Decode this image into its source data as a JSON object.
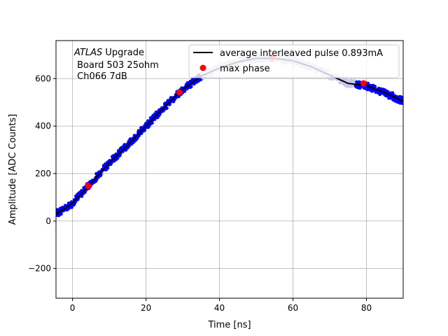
{
  "chart_data": {
    "type": "scatter",
    "title": "",
    "xlabel": "Time [ns]",
    "ylabel": "Amplitude [ADC Counts]",
    "xlim": [
      -4.5,
      90
    ],
    "ylim": [
      -325,
      760
    ],
    "grid": true,
    "xticks": [
      0,
      20,
      40,
      60,
      80
    ],
    "xtick_labels": [
      "0",
      "20",
      "40",
      "60",
      "80"
    ],
    "yticks": [
      -200,
      0,
      200,
      400,
      600
    ],
    "ytick_labels": [
      "−200",
      "0",
      "200",
      "400",
      "600"
    ],
    "annotation": {
      "line1_italic": "ATLAS",
      "line1_rest": " Upgrade",
      "line2": " Board 503 25ohm",
      "line3": " Ch066 7dB"
    },
    "legend": {
      "placement": "top-right",
      "entries": [
        {
          "label": "average interleaved pulse 0.893mA",
          "marker": "line",
          "color": "#000000"
        },
        {
          "label": "max phase",
          "marker": "dot",
          "color": "#ff0000"
        }
      ]
    },
    "colors": {
      "samples": "#0000ff",
      "samples_faded": "#c8c8f0",
      "average_line": "#000000",
      "max_phase": "#ff0000"
    },
    "series": [
      {
        "name": "average interleaved pulse 0.893mA",
        "kind": "line",
        "x": [
          -4.5,
          0,
          5,
          10,
          15,
          20,
          25,
          30,
          35,
          40,
          45,
          50,
          55,
          60,
          65,
          70,
          75,
          80,
          85,
          90
        ],
        "y": [
          30,
          75,
          160,
          245,
          320,
          400,
          480,
          555,
          610,
          645,
          670,
          685,
          685,
          675,
          650,
          615,
          580,
          570,
          540,
          505
        ]
      },
      {
        "name": "max phase",
        "kind": "scatter",
        "x": [
          4.2,
          29.1,
          54.3,
          79.2
        ],
        "y": [
          148,
          542,
          688,
          580
        ]
      },
      {
        "name": "samples",
        "kind": "scatter_band",
        "x_range": [
          -4.5,
          90
        ],
        "faded_range": [
          35,
          77
        ],
        "spread": 14
      }
    ]
  }
}
